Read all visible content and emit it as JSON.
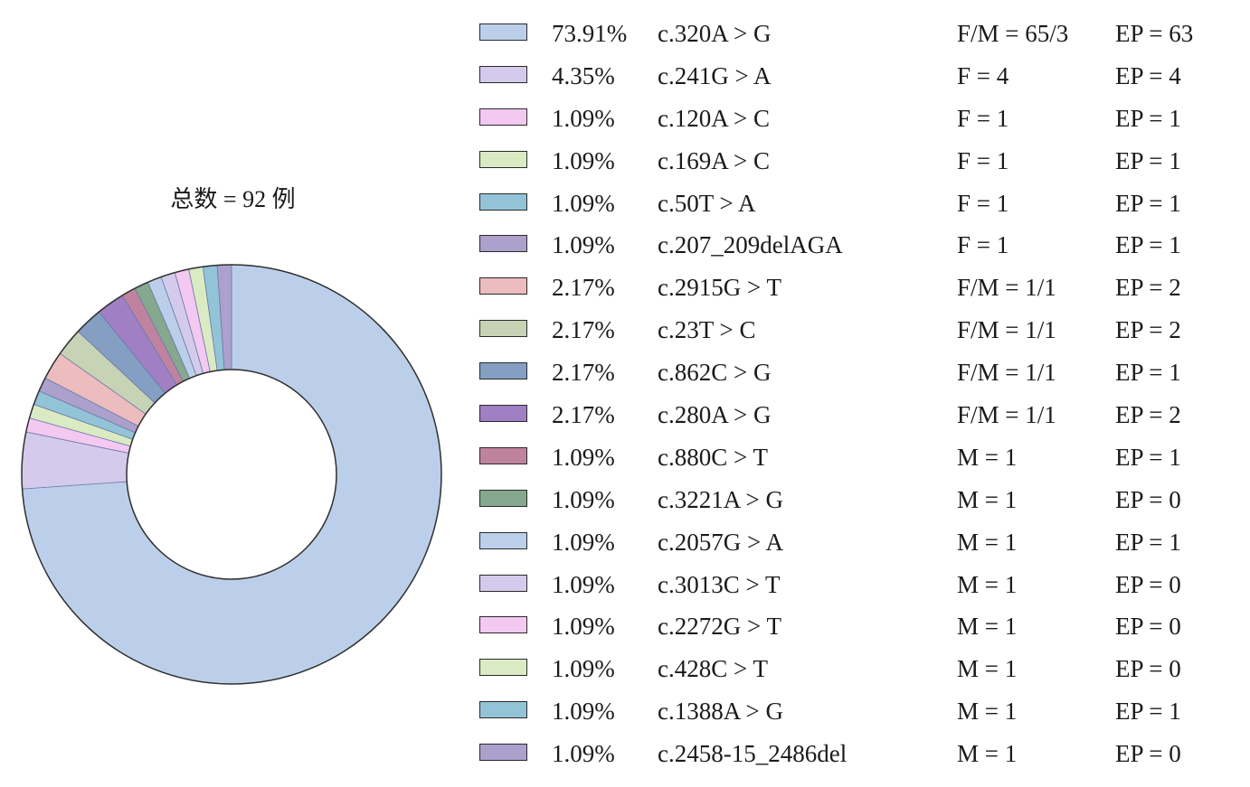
{
  "chart_data": {
    "type": "pie",
    "title": "总数 = 92 例",
    "slices": [
      {
        "percent": "73.91%",
        "value": 73.91,
        "label": "c.320A > G",
        "fm": "F/M = 65/3",
        "ep": "EP = 63",
        "color": "#bccfea"
      },
      {
        "percent": "4.35%",
        "value": 4.35,
        "label": "c.241G > A",
        "fm": "F = 4",
        "ep": "EP = 4",
        "color": "#d4cbec"
      },
      {
        "percent": "1.09%",
        "value": 1.09,
        "label": "c.120A > C",
        "fm": "F = 1",
        "ep": "EP = 1",
        "color": "#f3c8f1"
      },
      {
        "percent": "1.09%",
        "value": 1.09,
        "label": "c.169A > C",
        "fm": "F = 1",
        "ep": "EP = 1",
        "color": "#daebc4"
      },
      {
        "percent": "1.09%",
        "value": 1.09,
        "label": "c.50T > A",
        "fm": "F = 1",
        "ep": "EP = 1",
        "color": "#93c3d6"
      },
      {
        "percent": "1.09%",
        "value": 1.09,
        "label": "c.207_209delAGA",
        "fm": "F = 1",
        "ep": "EP = 1",
        "color": "#aba1cc"
      },
      {
        "percent": "2.17%",
        "value": 2.17,
        "label": "c.2915G > T",
        "fm": "F/M = 1/1",
        "ep": "EP = 2",
        "color": "#ecbcbf"
      },
      {
        "percent": "2.17%",
        "value": 2.17,
        "label": "c.23T > C",
        "fm": "F/M = 1/1",
        "ep": "EP = 2",
        "color": "#c6d3b5"
      },
      {
        "percent": "2.17%",
        "value": 2.17,
        "label": "c.862C > G",
        "fm": "F/M = 1/1",
        "ep": "EP = 1",
        "color": "#849fc2"
      },
      {
        "percent": "2.17%",
        "value": 2.17,
        "label": "c.280A > G",
        "fm": "F/M = 1/1",
        "ep": "EP = 2",
        "color": "#a07fc4"
      },
      {
        "percent": "1.09%",
        "value": 1.09,
        "label": "c.880C > T",
        "fm": "M = 1",
        "ep": "EP = 1",
        "color": "#c0839f"
      },
      {
        "percent": "1.09%",
        "value": 1.09,
        "label": "c.3221A > G",
        "fm": "M = 1",
        "ep": "EP = 0",
        "color": "#85a88f"
      },
      {
        "percent": "1.09%",
        "value": 1.09,
        "label": "c.2057G > A",
        "fm": "M = 1",
        "ep": "EP = 1",
        "color": "#bccfea"
      },
      {
        "percent": "1.09%",
        "value": 1.09,
        "label": "c.3013C > T",
        "fm": "M = 1",
        "ep": "EP = 0",
        "color": "#d4cbec"
      },
      {
        "percent": "1.09%",
        "value": 1.09,
        "label": "c.2272G > T",
        "fm": "M = 1",
        "ep": "EP = 0",
        "color": "#f3c8f1"
      },
      {
        "percent": "1.09%",
        "value": 1.09,
        "label": "c.428C > T",
        "fm": "M = 1",
        "ep": "EP = 0",
        "color": "#daebc4"
      },
      {
        "percent": "1.09%",
        "value": 1.09,
        "label": "c.1388A > G",
        "fm": "M = 1",
        "ep": "EP = 1",
        "color": "#93c3d6"
      },
      {
        "percent": "1.09%",
        "value": 1.09,
        "label": "c.2458-15_2486del",
        "fm": "M = 1",
        "ep": "EP = 0",
        "color": "#aba1cc"
      }
    ],
    "legend_position": "right"
  }
}
